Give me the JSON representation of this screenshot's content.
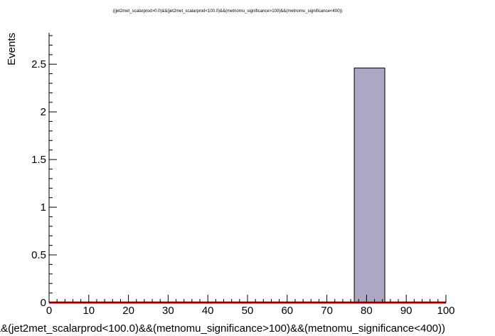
{
  "chart_data": {
    "type": "bar",
    "title": "((jet2met_scalarprod>0.0)&&(jet2met_scalarprod<100.0)&&(metnomu_significance>100)&&(metnomu_significance<400))",
    "xlabel": "&&(jet2met_scalarprod<100.0)&&(metnomu_significance>100)&&(metnomu_significance<400))",
    "ylabel": "Events",
    "xlim": [
      0,
      100
    ],
    "ylim": [
      0,
      2.83
    ],
    "x_ticks": [
      "0",
      "10",
      "20",
      "30",
      "40",
      "50",
      "60",
      "70",
      "80",
      "90",
      "100"
    ],
    "y_ticks": [
      "0",
      "0.5",
      "1",
      "1.5",
      "2",
      "2.5"
    ],
    "bins": [
      {
        "x_low": 76.9,
        "x_high": 84.6,
        "value": 2.46
      }
    ],
    "baseline": {
      "value": 0
    },
    "colors": {
      "bar_fill": "#aaa8c2",
      "bar_stroke": "#000000",
      "baseline": "#ff0000",
      "axes": "#000000"
    },
    "grid": false,
    "legend": "none"
  }
}
